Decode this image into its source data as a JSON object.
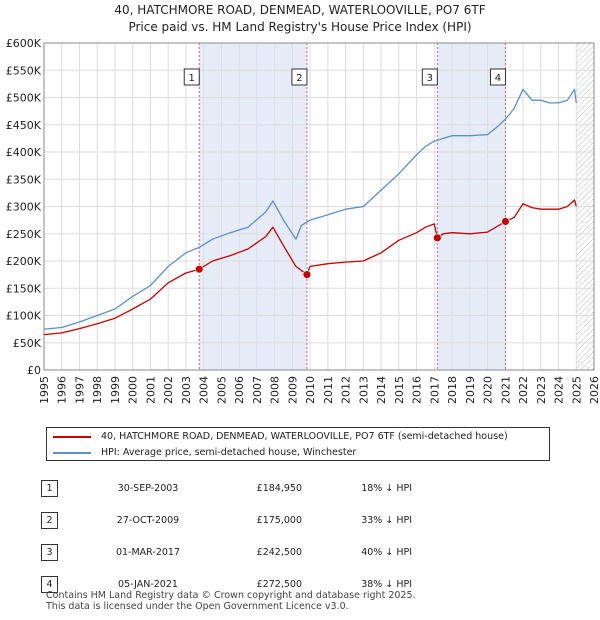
{
  "chart_data": {
    "type": "line",
    "title": "40, HATCHMORE ROAD, DENMEAD, WATERLOOVILLE, PO7 6TF",
    "subtitle": "Price paid vs. HM Land Registry's House Price Index (HPI)",
    "xlim": [
      1995,
      2026
    ],
    "ylim": [
      0,
      600000
    ],
    "y_ticks": [
      0,
      50000,
      100000,
      150000,
      200000,
      250000,
      300000,
      350000,
      400000,
      450000,
      500000,
      550000,
      600000
    ],
    "y_tick_labels": [
      "£0",
      "£50K",
      "£100K",
      "£150K",
      "£200K",
      "£250K",
      "£300K",
      "£350K",
      "£400K",
      "£450K",
      "£500K",
      "£550K",
      "£600K"
    ],
    "x_ticks": [
      1995,
      1996,
      1997,
      1998,
      1999,
      2000,
      2001,
      2002,
      2003,
      2004,
      2005,
      2006,
      2007,
      2008,
      2009,
      2010,
      2011,
      2012,
      2013,
      2014,
      2015,
      2016,
      2017,
      2018,
      2019,
      2020,
      2021,
      2022,
      2023,
      2024,
      2025,
      2026
    ],
    "x_tick_labels": [
      "1995",
      "1996",
      "1997",
      "1998",
      "1999",
      "2000",
      "2001",
      "2002",
      "2003",
      "2004",
      "2005",
      "2006",
      "2007",
      "2008",
      "2009",
      "2010",
      "2011",
      "2012",
      "2013",
      "2014",
      "2015",
      "2016",
      "2017",
      "2018",
      "2019",
      "2020",
      "2021",
      "2022",
      "2023",
      "2024",
      "2025",
      "2026"
    ],
    "grid": true,
    "shaded_spans": [
      [
        2003.75,
        2009.82
      ],
      [
        2017.17,
        2021.01
      ]
    ],
    "hatched_span": [
      2025.0,
      2026.0
    ],
    "series": [
      {
        "name": "HPI: Average price, semi-detached house, Winchester",
        "color": "#5b8fd0",
        "x": [
          1995.0,
          1996.0,
          1997.0,
          1998.0,
          1999.0,
          2000.0,
          2001.0,
          2002.0,
          2003.0,
          2003.75,
          2004.5,
          2005.5,
          2006.5,
          2007.5,
          2007.9,
          2008.5,
          2009.2,
          2009.5,
          2010.0,
          2011.0,
          2012.0,
          2013.0,
          2014.0,
          2015.0,
          2016.0,
          2016.5,
          2017.0,
          2017.5,
          2018.0,
          2019.0,
          2020.0,
          2020.5,
          2021.0,
          2021.5,
          2022.0,
          2022.5,
          2023.0,
          2023.5,
          2024.0,
          2024.5,
          2024.9,
          2025.0
        ],
        "values": [
          75000,
          78000,
          88000,
          100000,
          112000,
          135000,
          155000,
          190000,
          215000,
          225000,
          240000,
          252000,
          262000,
          290000,
          310000,
          275000,
          240000,
          265000,
          275000,
          285000,
          295000,
          300000,
          330000,
          360000,
          395000,
          410000,
          420000,
          425000,
          430000,
          430000,
          432000,
          445000,
          460000,
          480000,
          515000,
          495000,
          495000,
          490000,
          490000,
          495000,
          515000,
          490000
        ]
      },
      {
        "name": "40, HATCHMORE ROAD, DENMEAD, WATERLOOVILLE, PO7 6TF (semi-detached house)",
        "color": "#cc0000",
        "x": [
          1995.0,
          1996.0,
          1997.0,
          1998.0,
          1999.0,
          2000.0,
          2001.0,
          2002.0,
          2003.0,
          2003.75,
          2004.5,
          2005.5,
          2006.5,
          2007.5,
          2007.9,
          2008.5,
          2009.2,
          2009.82,
          2010.0,
          2011.0,
          2012.0,
          2013.0,
          2014.0,
          2015.0,
          2016.0,
          2016.5,
          2017.0,
          2017.17,
          2017.5,
          2018.0,
          2019.0,
          2020.0,
          2021.01,
          2021.5,
          2022.0,
          2022.5,
          2023.0,
          2023.5,
          2024.0,
          2024.5,
          2024.9,
          2025.0
        ],
        "values": [
          65000,
          68000,
          76000,
          85000,
          95000,
          112000,
          130000,
          160000,
          178000,
          184950,
          200000,
          210000,
          222000,
          245000,
          262000,
          228000,
          190000,
          175000,
          190000,
          195000,
          198000,
          200000,
          215000,
          238000,
          252000,
          262000,
          268000,
          242500,
          250000,
          252000,
          250000,
          253000,
          272500,
          280000,
          305000,
          298000,
          295000,
          295000,
          295000,
          300000,
          312000,
          300000
        ]
      }
    ],
    "annotations": [
      {
        "label": "1",
        "x": 2003.75,
        "y": 184950
      },
      {
        "label": "2",
        "x": 2009.82,
        "y": 175000
      },
      {
        "label": "3",
        "x": 2017.17,
        "y": 242500
      },
      {
        "label": "4",
        "x": 2021.01,
        "y": 272500
      }
    ]
  },
  "legend": {
    "property_label": "40, HATCHMORE ROAD, DENMEAD, WATERLOOVILLE, PO7 6TF (semi-detached house)",
    "hpi_label": "HPI: Average price, semi-detached house, Winchester",
    "property_color": "#cc0000",
    "hpi_color": "#5b8fd0"
  },
  "sales": [
    {
      "num": "1",
      "date": "30-SEP-2003",
      "price": "£184,950",
      "delta": "18% ↓ HPI"
    },
    {
      "num": "2",
      "date": "27-OCT-2009",
      "price": "£175,000",
      "delta": "33% ↓ HPI"
    },
    {
      "num": "3",
      "date": "01-MAR-2017",
      "price": "£242,500",
      "delta": "40% ↓ HPI"
    },
    {
      "num": "4",
      "date": "05-JAN-2021",
      "price": "£272,500",
      "delta": "38% ↓ HPI"
    }
  ],
  "footer": {
    "line1": "Contains HM Land Registry data © Crown copyright and database right 2025.",
    "line2": "This data is licensed under the Open Government Licence v3.0."
  }
}
